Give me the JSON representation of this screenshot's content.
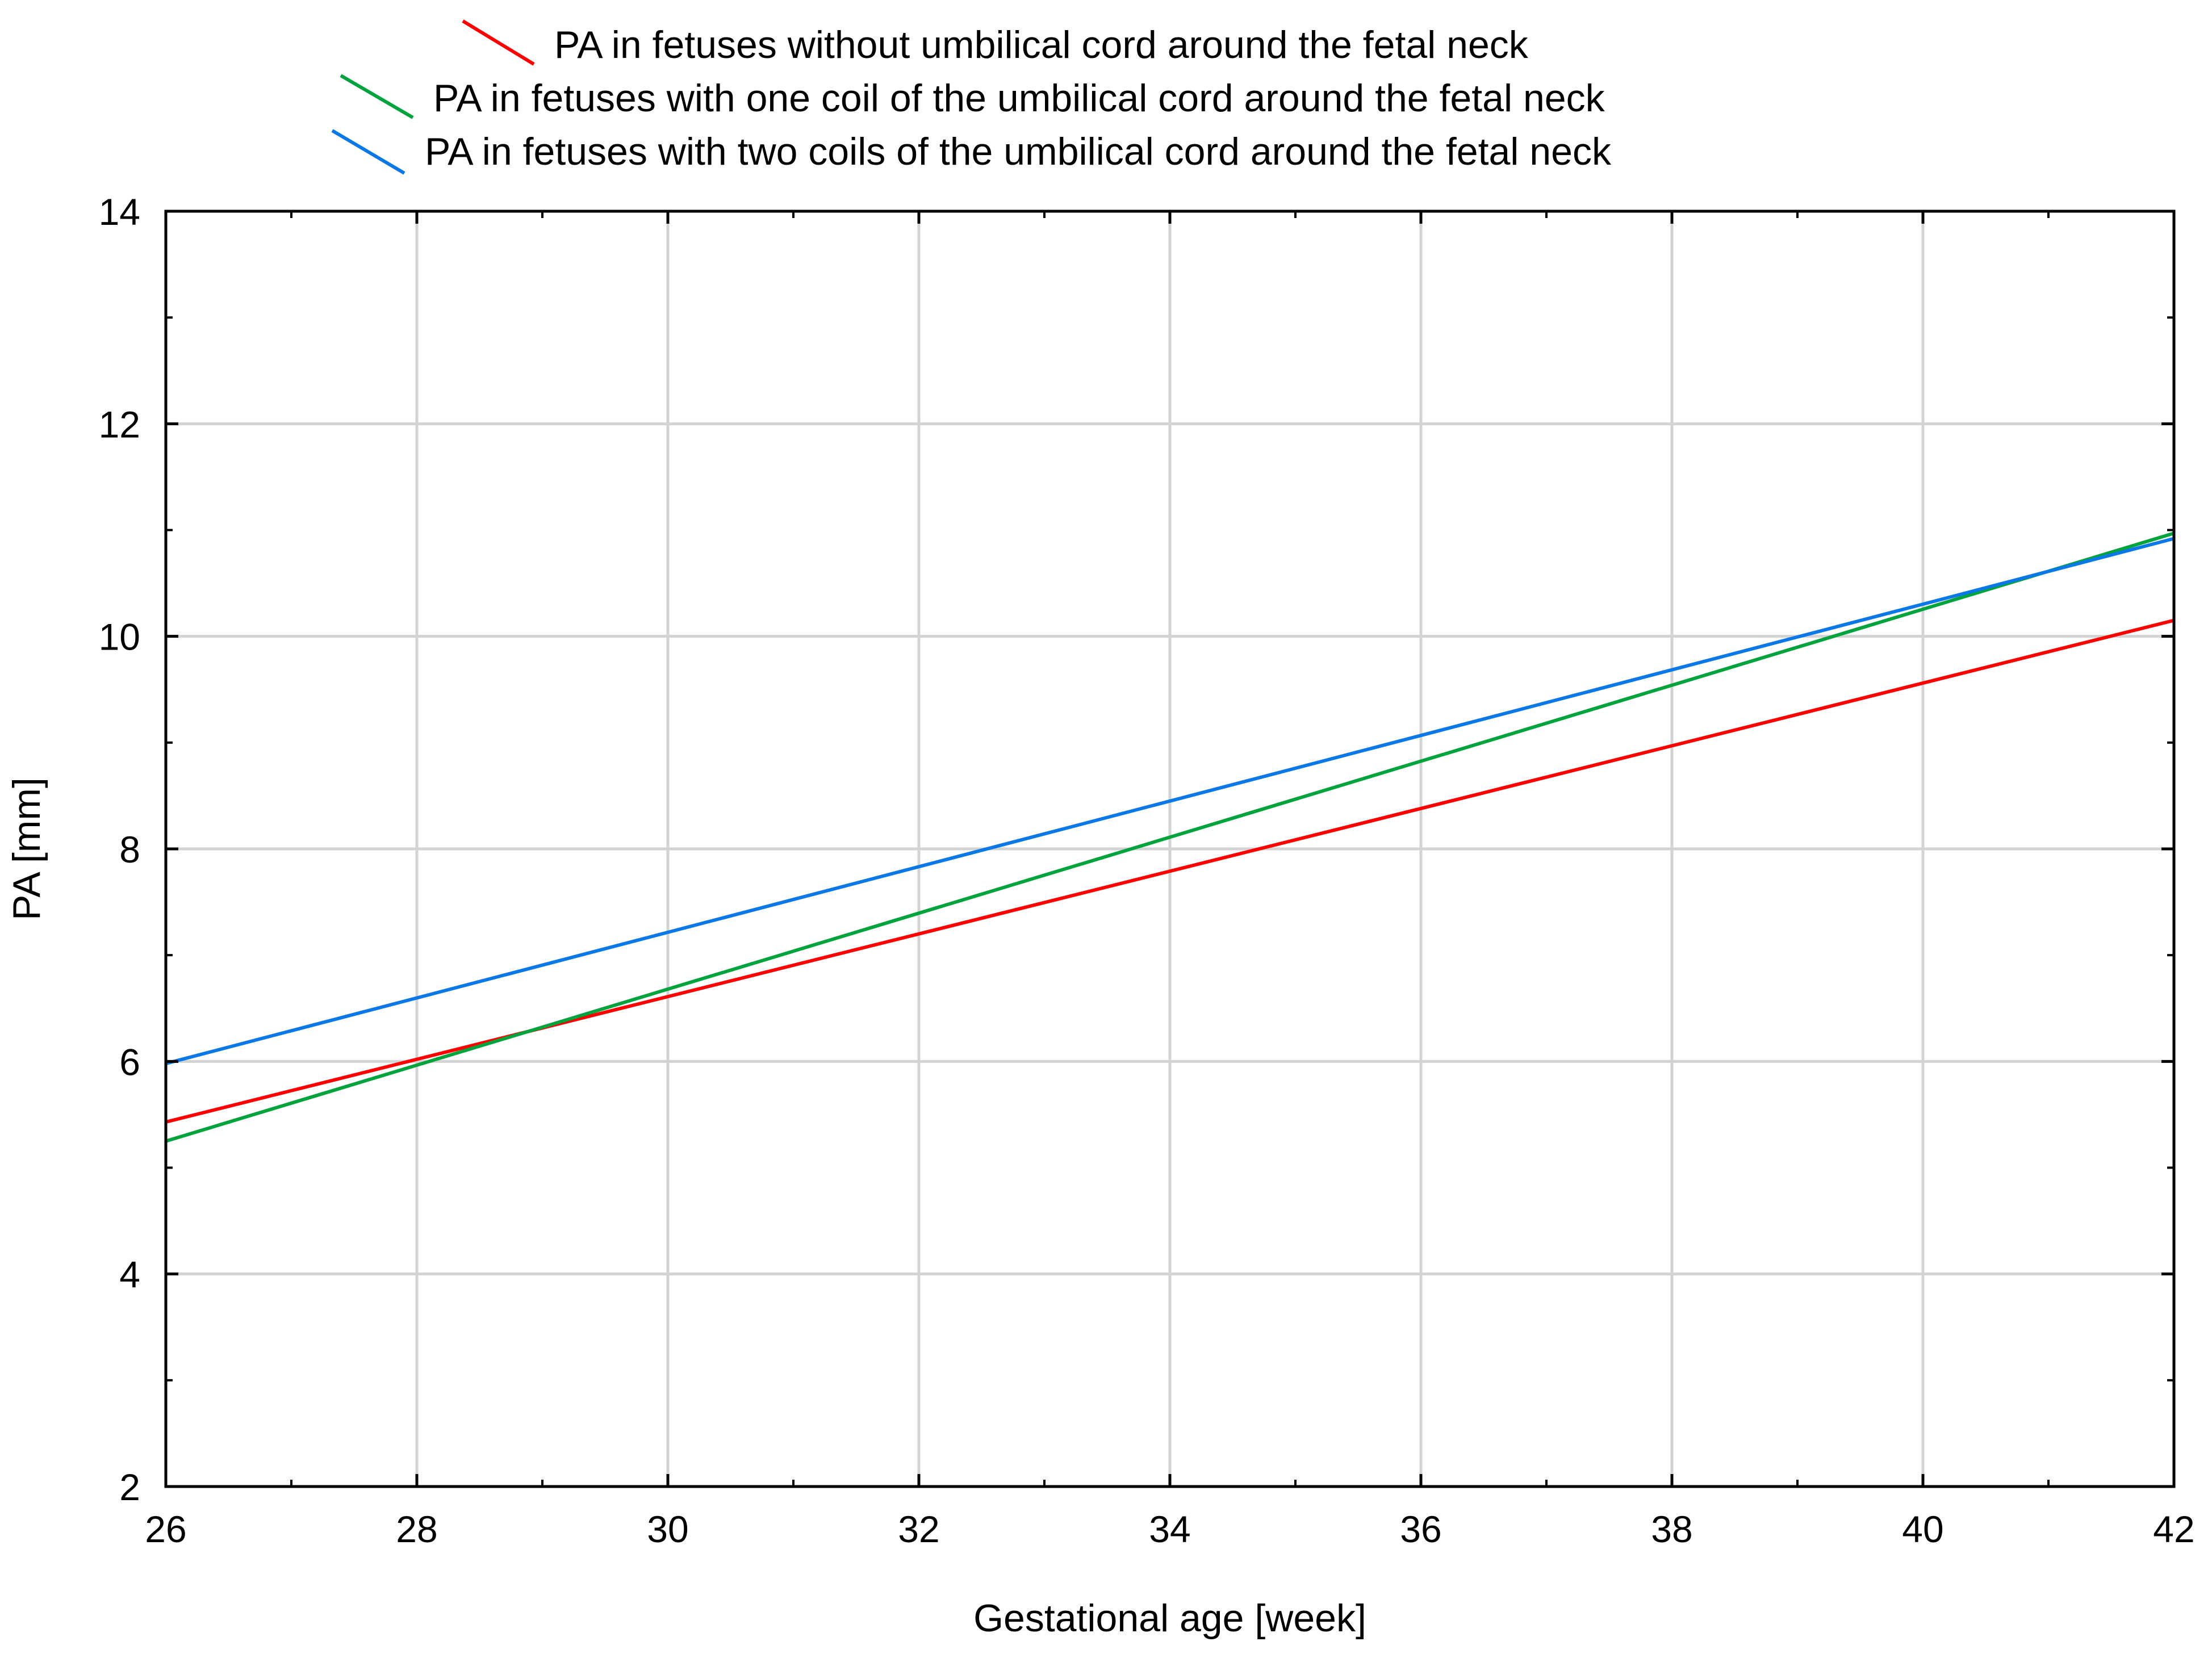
{
  "chart_data": {
    "type": "line",
    "xlabel": "Gestational age [week]",
    "ylabel": "PA [mm]",
    "xlim": [
      26,
      42
    ],
    "ylim": [
      2,
      14
    ],
    "x_ticks": [
      "26",
      "28",
      "30",
      "32",
      "34",
      "36",
      "38",
      "40",
      "42"
    ],
    "y_ticks": [
      "2",
      "4",
      "6",
      "8",
      "10",
      "12",
      "14"
    ],
    "grid": true,
    "legend_position": "top-center",
    "series": [
      {
        "name": "PA in fetuses without umbilical cord around the fetal neck",
        "color": "#ff0000",
        "x": [
          26,
          42
        ],
        "y": [
          5.43,
          10.15
        ]
      },
      {
        "name": "PA in fetuses with one coil of the umbilical cord around the fetal neck",
        "color": "#00a33c",
        "x": [
          26,
          42
        ],
        "y": [
          5.25,
          10.97
        ]
      },
      {
        "name": "PA in fetuses with two coils of the umbilical cord around the fetal neck",
        "color": "#0a78e6",
        "x": [
          26,
          42
        ],
        "y": [
          5.98,
          10.92
        ]
      }
    ]
  }
}
